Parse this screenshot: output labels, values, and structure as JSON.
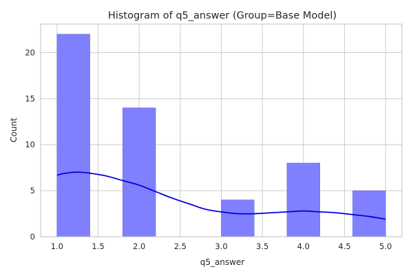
{
  "chart_data": {
    "type": "bar",
    "title": "Histogram of q5_answer (Group=Base Model)",
    "xlabel": "q5_answer",
    "ylabel": "Count",
    "xlim": [
      0.8,
      5.2
    ],
    "ylim": [
      0,
      23.1
    ],
    "xticks": [
      "1.0",
      "1.5",
      "2.0",
      "2.5",
      "3.0",
      "3.5",
      "4.0",
      "4.5",
      "5.0"
    ],
    "yticks": [
      "0",
      "5",
      "10",
      "15",
      "20"
    ],
    "bins": [
      {
        "x0": 1.0,
        "x1": 1.4,
        "count": 22
      },
      {
        "x0": 1.4,
        "x1": 1.8,
        "count": 0
      },
      {
        "x0": 1.8,
        "x1": 2.2,
        "count": 14
      },
      {
        "x0": 2.2,
        "x1": 2.6,
        "count": 0
      },
      {
        "x0": 2.6,
        "x1": 3.0,
        "count": 0
      },
      {
        "x0": 3.0,
        "x1": 3.4,
        "count": 4
      },
      {
        "x0": 3.4,
        "x1": 3.8,
        "count": 0
      },
      {
        "x0": 3.8,
        "x1": 4.2,
        "count": 8
      },
      {
        "x0": 4.2,
        "x1": 4.6,
        "count": 0
      },
      {
        "x0": 4.6,
        "x1": 5.0,
        "count": 5
      }
    ],
    "kde": {
      "x": [
        1.0,
        1.1,
        1.2,
        1.3,
        1.4,
        1.6,
        1.8,
        2.0,
        2.2,
        2.4,
        2.6,
        2.8,
        3.0,
        3.2,
        3.4,
        3.6,
        3.8,
        4.0,
        4.2,
        4.4,
        4.6,
        4.8,
        5.0
      ],
      "y": [
        6.7,
        6.9,
        7.0,
        7.0,
        6.9,
        6.6,
        6.1,
        5.6,
        4.9,
        4.2,
        3.6,
        3.0,
        2.7,
        2.5,
        2.5,
        2.6,
        2.7,
        2.8,
        2.7,
        2.6,
        2.4,
        2.2,
        1.9
      ]
    },
    "bar_color": "#8080ff",
    "bar_edge_color": "#6b6bd6",
    "line_color": "#0000dd",
    "grid": true,
    "grid_color": "#cccccc",
    "legend": "none"
  }
}
